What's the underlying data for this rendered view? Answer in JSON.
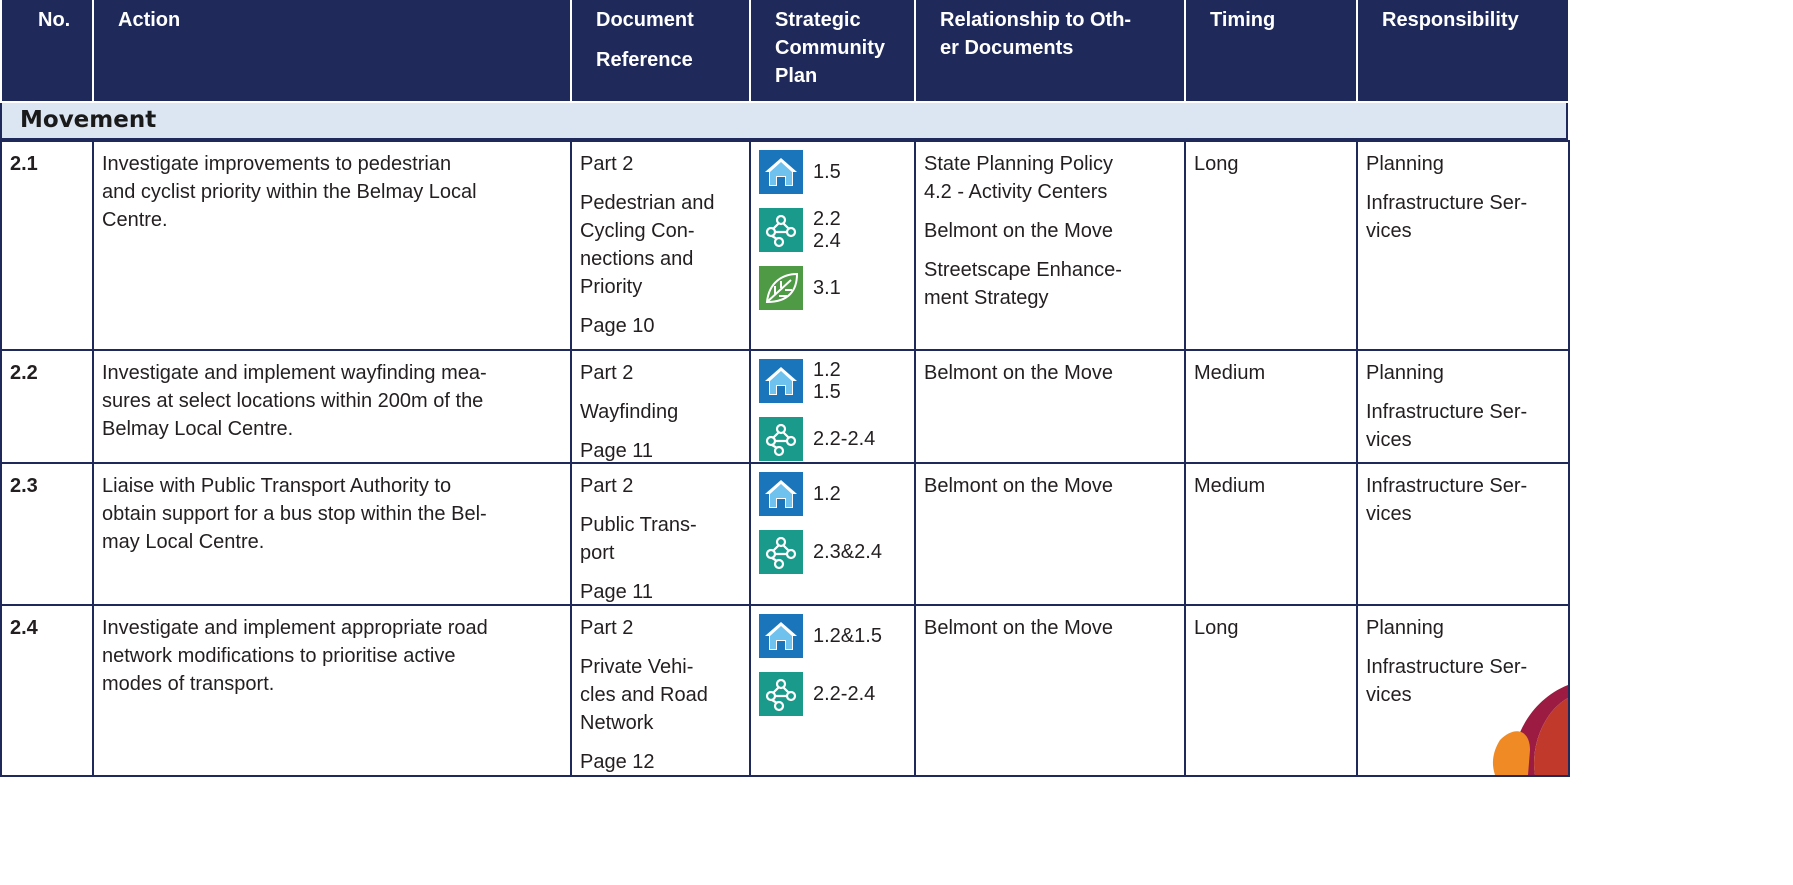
{
  "header": [
    [
      "No."
    ],
    [
      "Action"
    ],
    [
      "Document",
      "Reference"
    ],
    [
      "Strategic",
      "Community",
      "Plan"
    ],
    [
      "Relationship to Oth-",
      "er Documents"
    ],
    [
      "Timing"
    ],
    [
      "Responsibility"
    ]
  ],
  "section": "Movement",
  "rows": [
    {
      "no": "2.1",
      "action": [
        "Investigate improvements to pedestrian",
        "and cyclist priority within the Belmay Local",
        "Centre."
      ],
      "document": [
        [
          "Part 2"
        ],
        [
          "Pedestrian and",
          "Cycling Con-",
          "nections and",
          "Priority"
        ],
        [
          "Page 10"
        ]
      ],
      "scp": [
        {
          "icon": "home",
          "labels": [
            "1.5"
          ]
        },
        {
          "icon": "network",
          "labels": [
            "2.2",
            "2.4"
          ]
        },
        {
          "icon": "leaf",
          "labels": [
            "3.1"
          ]
        }
      ],
      "relationship": [
        [
          "State Planning Policy",
          "4.2 - Activity Centers"
        ],
        [
          "Belmont on the Move"
        ],
        [
          "Streetscape Enhance-",
          "ment Strategy"
        ]
      ],
      "timing": "Long",
      "responsibility": [
        [
          "Planning"
        ],
        [
          "Infrastructure Ser-",
          "vices"
        ]
      ]
    },
    {
      "no": "2.2",
      "action": [
        "Investigate and implement wayfinding mea-",
        "sures at select locations within 200m of the",
        "Belmay Local Centre."
      ],
      "document": [
        [
          "Part 2"
        ],
        [
          "Wayfinding"
        ],
        [
          "Page 11"
        ]
      ],
      "scp": [
        {
          "icon": "home",
          "labels": [
            "1.2",
            "1.5"
          ]
        },
        {
          "icon": "network",
          "labels": [
            "2.2-2.4"
          ]
        }
      ],
      "relationship": [
        [
          "Belmont on the Move"
        ]
      ],
      "timing": "Medium",
      "responsibility": [
        [
          "Planning"
        ],
        [
          "Infrastructure Ser-",
          "vices"
        ]
      ]
    },
    {
      "no": "2.3",
      "action": [
        "Liaise with Public Transport Authority to",
        "obtain support for a bus stop within the Bel-",
        "may Local Centre."
      ],
      "document": [
        [
          "Part 2"
        ],
        [
          "Public Trans-",
          "port"
        ],
        [
          "Page 11"
        ]
      ],
      "scp": [
        {
          "icon": "home",
          "labels": [
            "1.2"
          ]
        },
        {
          "icon": "network",
          "labels": [
            "2.3&2.4"
          ]
        }
      ],
      "relationship": [
        [
          "Belmont on the Move"
        ]
      ],
      "timing": "Medium",
      "responsibility": [
        [
          "Infrastructure Ser-",
          "vices"
        ]
      ]
    },
    {
      "no": "2.4",
      "action": [
        "Investigate and implement appropriate road",
        "network modifications to prioritise active",
        "modes of transport."
      ],
      "document": [
        [
          "Part 2"
        ],
        [
          "Private Vehi-",
          "cles and Road",
          "Network"
        ],
        [
          "Page 12"
        ]
      ],
      "scp": [
        {
          "icon": "home",
          "labels": [
            "1.2&1.5"
          ]
        },
        {
          "icon": "network",
          "labels": [
            "2.2-2.4"
          ]
        }
      ],
      "relationship": [
        [
          "Belmont on the Move"
        ]
      ],
      "timing": "Long",
      "responsibility": [
        [
          "Planning"
        ],
        [
          "Infrastructure Ser-",
          "vices"
        ]
      ]
    }
  ]
}
